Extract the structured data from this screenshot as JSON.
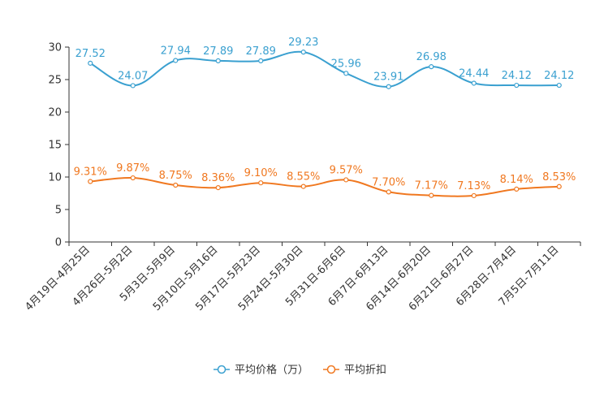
{
  "chart_data": {
    "type": "line",
    "categories": [
      "4月19日-4月25日",
      "4月26日-5月2日",
      "5月3日-5月9日",
      "5月10日-5月16日",
      "5月17日-5月23日",
      "5月24日-5月30日",
      "5月31日-6月6日",
      "6月7日-6月13日",
      "6月14日-6月20日",
      "6月21日-6月27日",
      "6月28日-7月4日",
      "7月5日-7月11日"
    ],
    "ylim": [
      0,
      30
    ],
    "yticks": [
      0,
      5,
      10,
      15,
      20,
      25,
      30
    ],
    "legend_position": "bottom-center",
    "series": [
      {
        "name": "平均价格（万）",
        "color": "#3aa0d0",
        "values": [
          27.52,
          24.07,
          27.94,
          27.89,
          27.89,
          29.23,
          25.96,
          23.91,
          26.98,
          24.44,
          24.12,
          24.12
        ],
        "labels": [
          "27.52",
          "24.07",
          "27.94",
          "27.89",
          "27.89",
          "29.23",
          "25.96",
          "23.91",
          "26.98",
          "24.44",
          "24.12",
          "24.12"
        ]
      },
      {
        "name": "平均折扣",
        "color": "#f07820",
        "values": [
          9.31,
          9.87,
          8.75,
          8.36,
          9.1,
          8.55,
          9.57,
          7.7,
          7.17,
          7.13,
          8.14,
          8.53
        ],
        "labels": [
          "9.31%",
          "9.87%",
          "8.75%",
          "8.36%",
          "9.10%",
          "8.55%",
          "9.57%",
          "7.70%",
          "7.17%",
          "7.13%",
          "8.14%",
          "8.53%"
        ]
      }
    ]
  }
}
